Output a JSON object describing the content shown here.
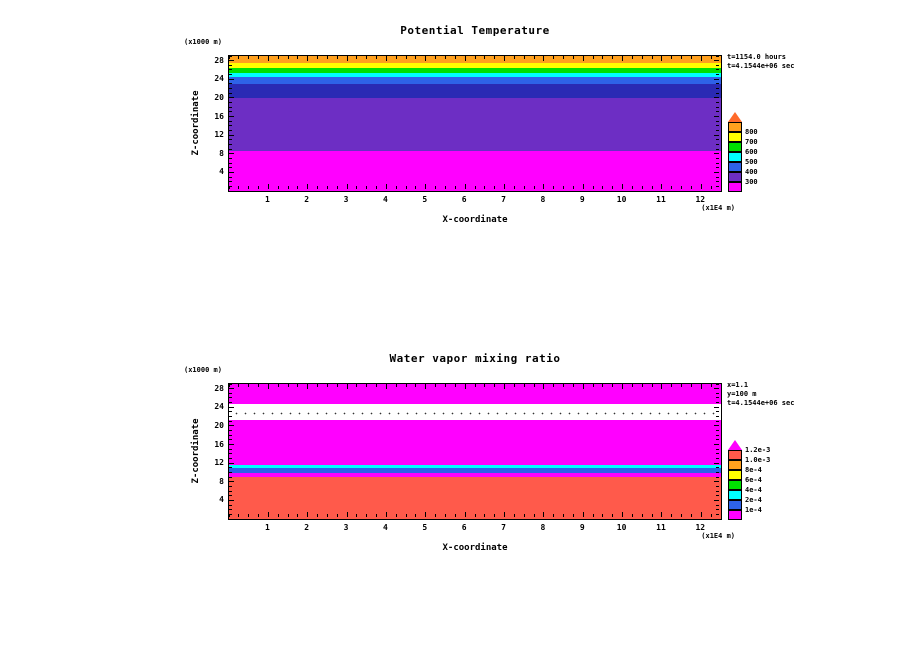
{
  "page": {
    "background": "#FFFFFF"
  },
  "chart_data": [
    {
      "type": "heatmap",
      "title": "Potential Temperature",
      "xlabel": "X-coordinate",
      "x_unit_label": "(x1E4 m)",
      "ylabel": "Z-coordinate",
      "y_unit_label": "(x1000 m)",
      "xlim": [
        0,
        12.5
      ],
      "ylim": [
        0,
        29
      ],
      "x_major_ticks": [
        1,
        2,
        3,
        4,
        5,
        6,
        7,
        8,
        9,
        10,
        11,
        12
      ],
      "x_minor_step": 0.25,
      "y_major_ticks": [
        4,
        8,
        12,
        16,
        20,
        24,
        28
      ],
      "y_minor_step": 1,
      "annotations": [
        "t=1154.0 hours",
        "t=4.1544e+06 sec"
      ],
      "bands": [
        {
          "from": 0,
          "to": 8.6,
          "color": "#FF00FF"
        },
        {
          "from": 8.6,
          "to": 20.0,
          "color": "#6D2EC4"
        },
        {
          "from": 20.0,
          "to": 23.0,
          "color": "#2A2AB4"
        },
        {
          "from": 23.0,
          "to": 24.4,
          "color": "#2E62E8"
        },
        {
          "from": 24.4,
          "to": 25.4,
          "color": "#00FFFF"
        },
        {
          "from": 25.4,
          "to": 26.4,
          "color": "#00E000"
        },
        {
          "from": 26.4,
          "to": 27.4,
          "color": "#FFFF00"
        },
        {
          "from": 27.4,
          "to": 29.0,
          "color": "#FFA01E"
        }
      ],
      "colorbar": {
        "triangle_color": "#FF6A2A",
        "segments_top_to_bottom": [
          "#FFA01E",
          "#FFFF00",
          "#00E000",
          "#00FFFF",
          "#2E62E8",
          "#6D2EC4",
          "#FF00FF"
        ],
        "labels_top_to_bottom": [
          "800",
          "700",
          "600",
          "500",
          "400",
          "300"
        ]
      }
    },
    {
      "type": "heatmap",
      "title": "Water vapor mixing ratio",
      "xlabel": "X-coordinate",
      "x_unit_label": "(x1E4 m)",
      "ylabel": "Z-coordinate",
      "y_unit_label": "(x1000 m)",
      "xlim": [
        0,
        12.5
      ],
      "ylim": [
        0,
        29
      ],
      "x_major_ticks": [
        1,
        2,
        3,
        4,
        5,
        6,
        7,
        8,
        9,
        10,
        11,
        12
      ],
      "x_minor_step": 0.25,
      "y_major_ticks": [
        4,
        8,
        12,
        16,
        20,
        24,
        28
      ],
      "y_minor_step": 1,
      "annotations": [
        "x=1.1",
        "y=100 m",
        "t=4.1544e+06 sec"
      ],
      "bands": [
        {
          "from": 0,
          "to": 9.0,
          "color": "#FF5A4B"
        },
        {
          "from": 9.0,
          "to": 9.8,
          "color": "#FF00FF"
        },
        {
          "from": 9.8,
          "to": 10.9,
          "color": "#2E62E8"
        },
        {
          "from": 10.9,
          "to": 11.7,
          "color": "#00FFFF"
        },
        {
          "from": 11.7,
          "to": 21.3,
          "color": "#FF00FF"
        },
        {
          "from": 21.3,
          "to": 24.6,
          "color": "#FFFFFF",
          "dots": true
        },
        {
          "from": 24.6,
          "to": 29.0,
          "color": "#FF00FF"
        }
      ],
      "colorbar": {
        "triangle_color": "#FF00FF",
        "segments_top_to_bottom": [
          "#FF5A4B",
          "#FFA01E",
          "#FFFF00",
          "#00E000",
          "#00FFFF",
          "#2E62E8",
          "#FF00FF"
        ],
        "labels_top_to_bottom": [
          "1.2e-3",
          "1.0e-3",
          "8e-4",
          "6e-4",
          "4e-4",
          "2e-4",
          "1e-4"
        ]
      }
    }
  ]
}
